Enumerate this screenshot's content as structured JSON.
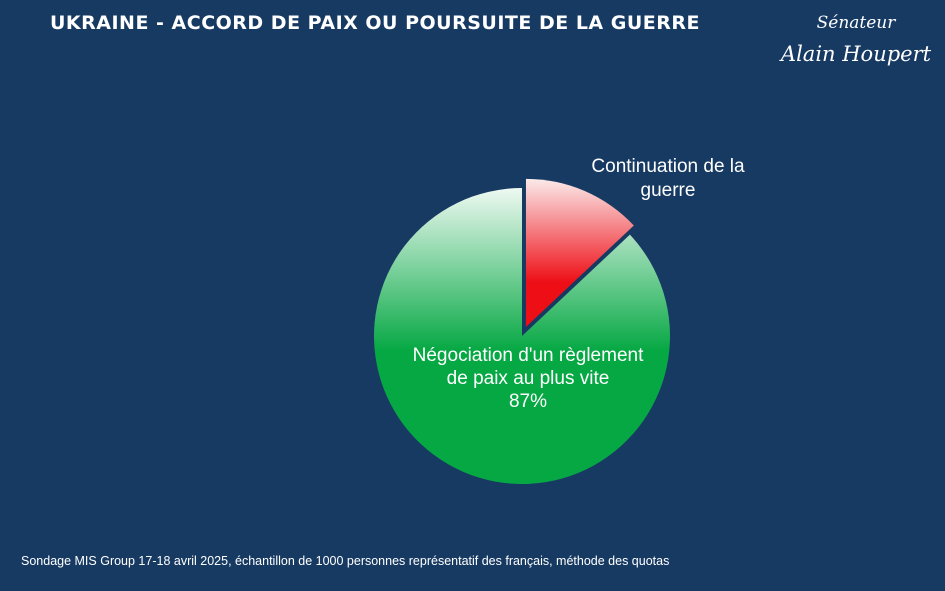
{
  "header": {
    "title": "UKRAINE - ACCORD DE PAIX OU POURSUITE DE LA GUERRE"
  },
  "signature": {
    "line1": "Sénateur",
    "line2": "Alain Houpert"
  },
  "footer": {
    "source": "Sondage MIS Group 17-18 avril 2025, échantillon de 1000 personnes représentatif des français, méthode des quotas"
  },
  "colors": {
    "background": "#173a63",
    "peace_slice": "#0fae4c",
    "war_slice": "#e8212b"
  },
  "chart_data": {
    "type": "pie",
    "slices": [
      {
        "label_lines": [
          "Négociation d'un règlement",
          "de paix au plus vite"
        ],
        "value": 87,
        "value_label": "87%",
        "color_top": "#eef9f2",
        "color_bottom": "#06a844"
      },
      {
        "label_lines": [
          "Continuation de la",
          "guerre"
        ],
        "value": 13,
        "value_label": "",
        "color_top": "#fbeaea",
        "color_bottom": "#ee0e16",
        "exploded": true
      }
    ],
    "start_angle": "12 o'clock",
    "direction": "clockwise"
  }
}
